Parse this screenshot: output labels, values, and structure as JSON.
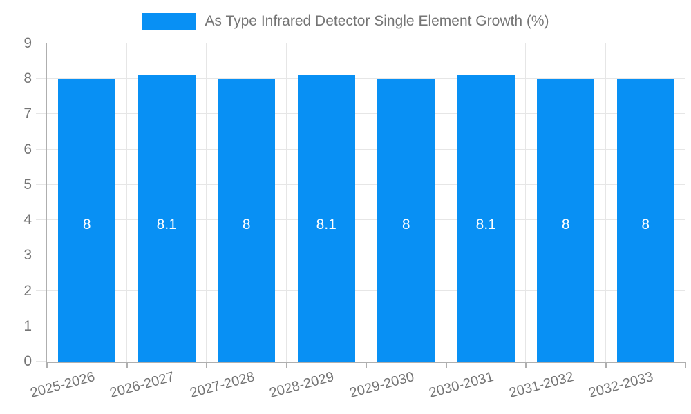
{
  "legend": {
    "label": "As Type Infrared Detector Single Element Growth (%)"
  },
  "chart_data": {
    "type": "bar",
    "title": "As Type Infrared Detector Single Element Growth (%)",
    "categories": [
      "2025-2026",
      "2026-2027",
      "2027-2028",
      "2028-2029",
      "2029-2030",
      "2030-2031",
      "2031-2032",
      "2032-2033"
    ],
    "values": [
      8,
      8.1,
      8,
      8.1,
      8,
      8.1,
      8,
      8
    ],
    "bar_labels": [
      "8",
      "8.1",
      "8",
      "8.1",
      "8",
      "8.1",
      "8",
      "8"
    ],
    "xlabel": "",
    "ylabel": "",
    "ylim": [
      0,
      9
    ],
    "yticks": [
      0,
      1,
      2,
      3,
      4,
      5,
      6,
      7,
      8,
      9
    ],
    "grid": true,
    "legend_position": "top",
    "colors": {
      "bar": "#0890F4",
      "axis_text": "#757575",
      "grid_line": "#E6E6E6",
      "axis_line": "#AFAFAF",
      "value_text": "#FFFFFF"
    }
  }
}
